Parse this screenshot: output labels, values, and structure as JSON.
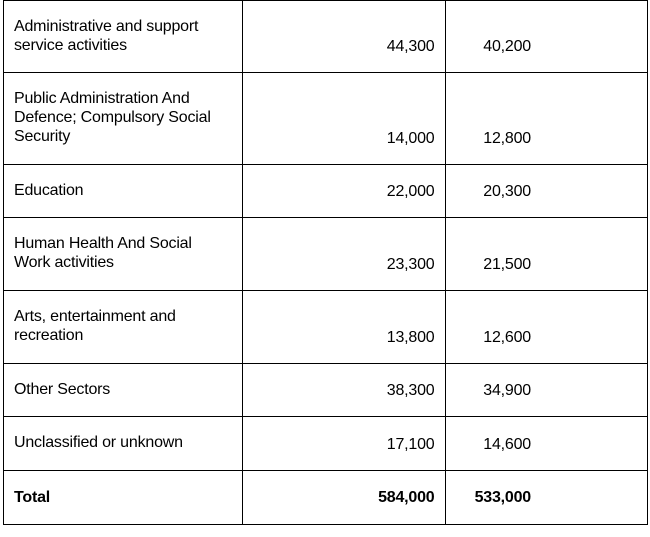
{
  "table": {
    "rows": [
      {
        "sector": "Administrative and support service activities",
        "value_a": "44,300",
        "value_b": "40,200"
      },
      {
        "sector": "Public Administration And Defence; Compulsory Social Security",
        "value_a": "14,000",
        "value_b": "12,800"
      },
      {
        "sector": "Education",
        "value_a": "22,000",
        "value_b": "20,300"
      },
      {
        "sector": "Human Health And Social Work activities",
        "value_a": "23,300",
        "value_b": "21,500"
      },
      {
        "sector": "Arts, entertainment and recreation",
        "value_a": "13,800",
        "value_b": "12,600"
      },
      {
        "sector": "Other Sectors",
        "value_a": "38,300",
        "value_b": "34,900"
      },
      {
        "sector": "Unclassified or unknown",
        "value_a": "17,100",
        "value_b": "14,600"
      }
    ],
    "total": {
      "label": "Total",
      "value_a": "584,000",
      "value_b": "533,000"
    }
  }
}
